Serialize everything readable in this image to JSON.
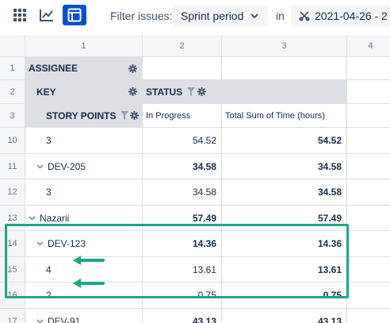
{
  "toolbar": {
    "views": [
      {
        "icon": "grid-icon",
        "active": false
      },
      {
        "icon": "chart-icon",
        "active": false
      },
      {
        "icon": "table-icon",
        "active": true
      }
    ],
    "filter_label": "Filter issues:",
    "filter_select": "Sprint period",
    "in_label": "in",
    "period_select": "2021-04-26 - 2"
  },
  "columns": [
    "1",
    "2",
    "3",
    "4"
  ],
  "header_rows": [
    {
      "row": "1",
      "label": "ASSIGNEE"
    },
    {
      "row": "2",
      "label": "KEY",
      "status": "STATUS"
    },
    {
      "row": "3",
      "label": "STORY POINTS",
      "value_cols": [
        "In Progress",
        "Total Sum of Time (hours)"
      ]
    }
  ],
  "rows": [
    {
      "row": "10",
      "label": "3",
      "level": 2,
      "expand": false,
      "in_progress": "54.52",
      "total": "54.52",
      "bold": false
    },
    {
      "row": "11",
      "label": "DEV-205",
      "level": 1,
      "expand": true,
      "in_progress": "34.58",
      "total": "34.58",
      "bold": true
    },
    {
      "row": "12",
      "label": "3",
      "level": 2,
      "expand": false,
      "in_progress": "34.58",
      "total": "34.58",
      "bold": false
    },
    {
      "row": "13",
      "label": "Nazarii",
      "level": 0,
      "expand": true,
      "in_progress": "57.49",
      "total": "57.49",
      "bold": true
    },
    {
      "row": "14",
      "label": "DEV-123",
      "level": 1,
      "expand": true,
      "in_progress": "14.36",
      "total": "14.36",
      "bold": true
    },
    {
      "row": "15",
      "label": "4",
      "level": 2,
      "expand": false,
      "in_progress": "13.61",
      "total": "13.61",
      "bold": false
    },
    {
      "row": "16",
      "label": "2",
      "level": 2,
      "expand": false,
      "in_progress": "0.75",
      "total": "0.75",
      "bold": false
    },
    {
      "row": "17",
      "label": "DEV-91",
      "level": 1,
      "expand": true,
      "in_progress": "43.13",
      "total": "43.13",
      "bold": true
    }
  ],
  "colors": {
    "accent": "#0052cc",
    "highlight": "#1ea58a",
    "header_bg": "#dcdfe4"
  }
}
